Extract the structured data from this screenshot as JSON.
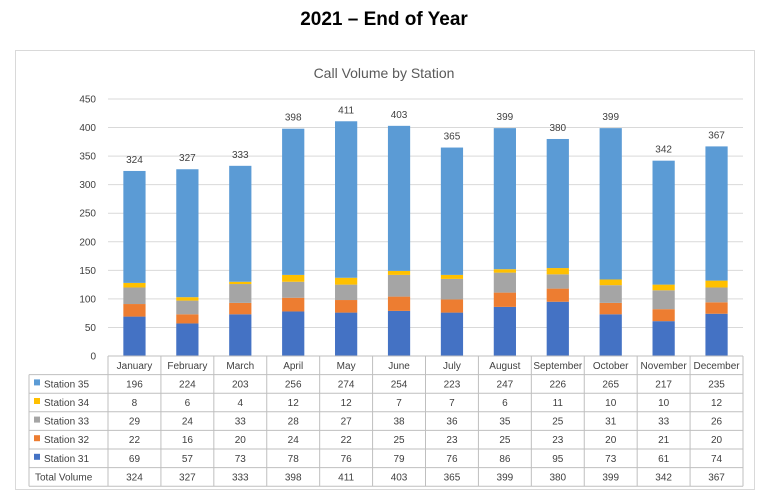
{
  "page_title": "2021 – End of Year",
  "chart_data": {
    "type": "bar",
    "stacked": true,
    "title": "Call Volume by Station",
    "xlabel": "",
    "ylabel": "",
    "ylim": [
      0,
      450
    ],
    "yticks": [
      0,
      50,
      100,
      150,
      200,
      250,
      300,
      350,
      400,
      450
    ],
    "grid": true,
    "categories": [
      "January",
      "February",
      "March",
      "April",
      "May",
      "June",
      "July",
      "August",
      "September",
      "October",
      "November",
      "December"
    ],
    "series": [
      {
        "name": "Station 31",
        "color": "#4472C4",
        "values": [
          69,
          57,
          73,
          78,
          76,
          79,
          76,
          86,
          95,
          73,
          61,
          74
        ]
      },
      {
        "name": "Station 32",
        "color": "#ED7D31",
        "values": [
          22,
          16,
          20,
          24,
          22,
          25,
          23,
          25,
          23,
          20,
          21,
          20
        ]
      },
      {
        "name": "Station 33",
        "color": "#A5A5A5",
        "values": [
          29,
          24,
          33,
          28,
          27,
          38,
          36,
          35,
          25,
          31,
          33,
          26
        ]
      },
      {
        "name": "Station 34",
        "color": "#FFC000",
        "values": [
          8,
          6,
          4,
          12,
          12,
          7,
          7,
          6,
          11,
          10,
          10,
          12
        ]
      },
      {
        "name": "Station 35",
        "color": "#5B9BD5",
        "values": [
          196,
          224,
          203,
          256,
          274,
          254,
          223,
          247,
          226,
          265,
          217,
          235
        ]
      }
    ],
    "totals": {
      "name": "Total Volume",
      "values": [
        324,
        327,
        333,
        398,
        411,
        403,
        365,
        399,
        380,
        399,
        342,
        367
      ]
    },
    "table_row_order": [
      "Station 35",
      "Station 34",
      "Station 33",
      "Station 32",
      "Station 31",
      "Total Volume"
    ]
  }
}
